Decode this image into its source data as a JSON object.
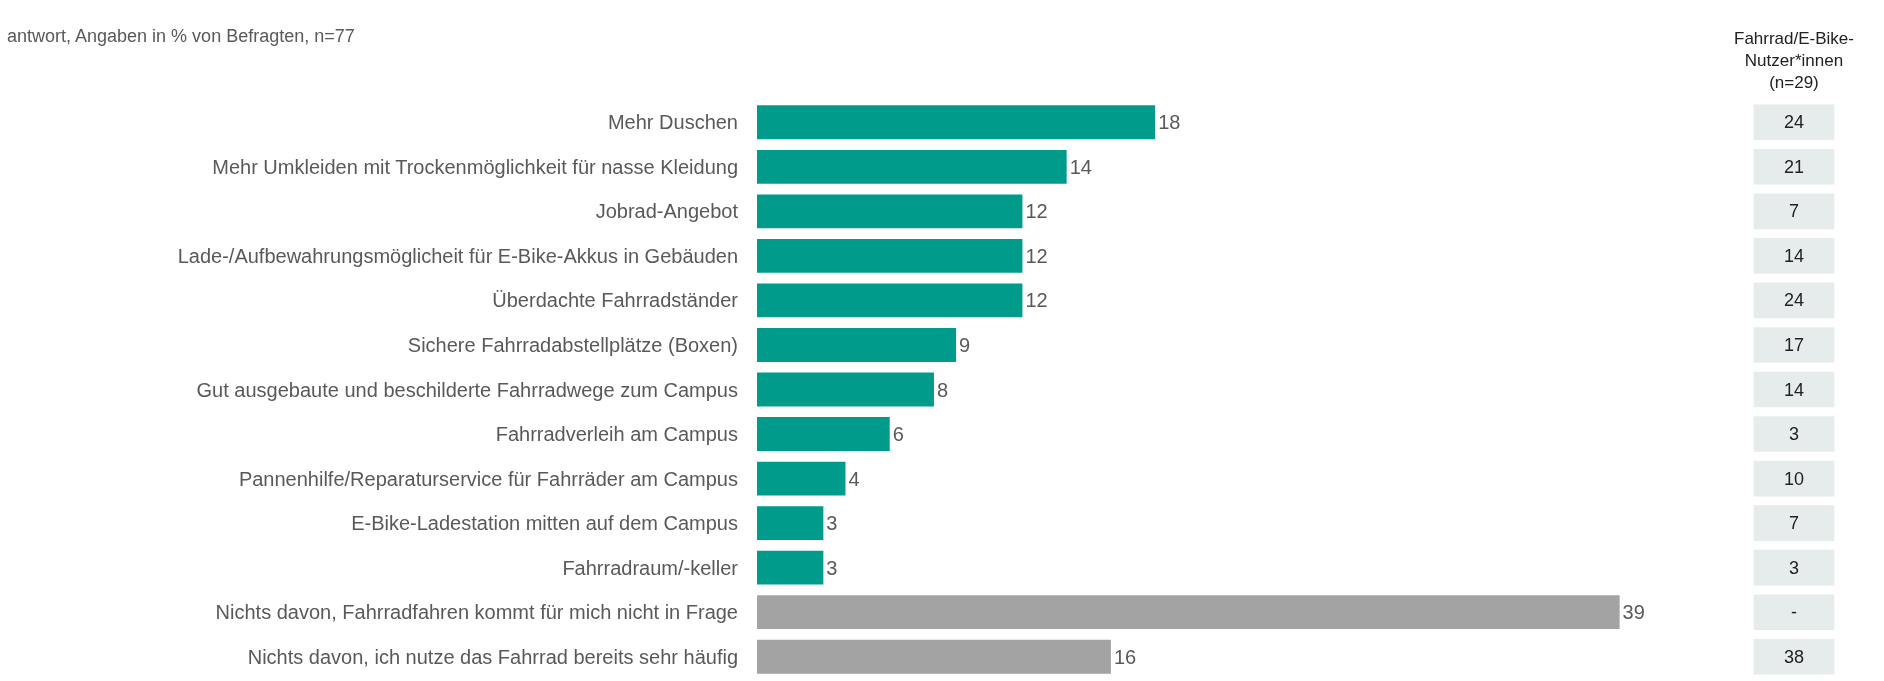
{
  "chart_data": [
    {
      "type": "bar",
      "orientation": "horizontal",
      "subtitle": "antwort, Angaben in % von Befragten, n=77",
      "categories": [
        "Mehr Duschen",
        "Mehr Umkleiden mit Trockenmöglichkeit für nasse Kleidung",
        "Jobrad-Angebot",
        "Lade-/Aufbewahrungsmöglicheit für E-Bike-Akkus in Gebäuden",
        "Überdachte Fahrradständer",
        "Sichere Fahrradabstellplätze (Boxen)",
        "Gut ausgebaute und beschilderte Fahrradwege zum Campus",
        "Fahrradverleih am Campus",
        "Pannenhilfe/Reparaturservice für Fahrräder am Campus",
        "E-Bike-Ladestation mitten auf dem Campus",
        "Fahrradraum/-keller",
        "Nichts davon, Fahrradfahren kommt für mich nicht in Frage",
        "Nichts davon, ich nutze das Fahrrad bereits sehr häufig"
      ],
      "values": [
        18,
        14,
        12,
        12,
        12,
        9,
        8,
        6,
        4,
        3,
        3,
        39,
        16
      ],
      "colors": [
        "#009b8a",
        "#009b8a",
        "#009b8a",
        "#009b8a",
        "#009b8a",
        "#009b8a",
        "#009b8a",
        "#009b8a",
        "#009b8a",
        "#009b8a",
        "#009b8a",
        "#a3a3a3",
        "#a3a3a3"
      ],
      "data_labels": true,
      "grid": false
    },
    {
      "type": "other",
      "title": "Fahrrad/E-Bike-\nNutzer*innen\n(n=29)",
      "annotations": [
        "24",
        "21",
        "7",
        "14",
        "24",
        "17",
        "14",
        "3",
        "10",
        "7",
        "3",
        "-",
        "38"
      ]
    }
  ]
}
